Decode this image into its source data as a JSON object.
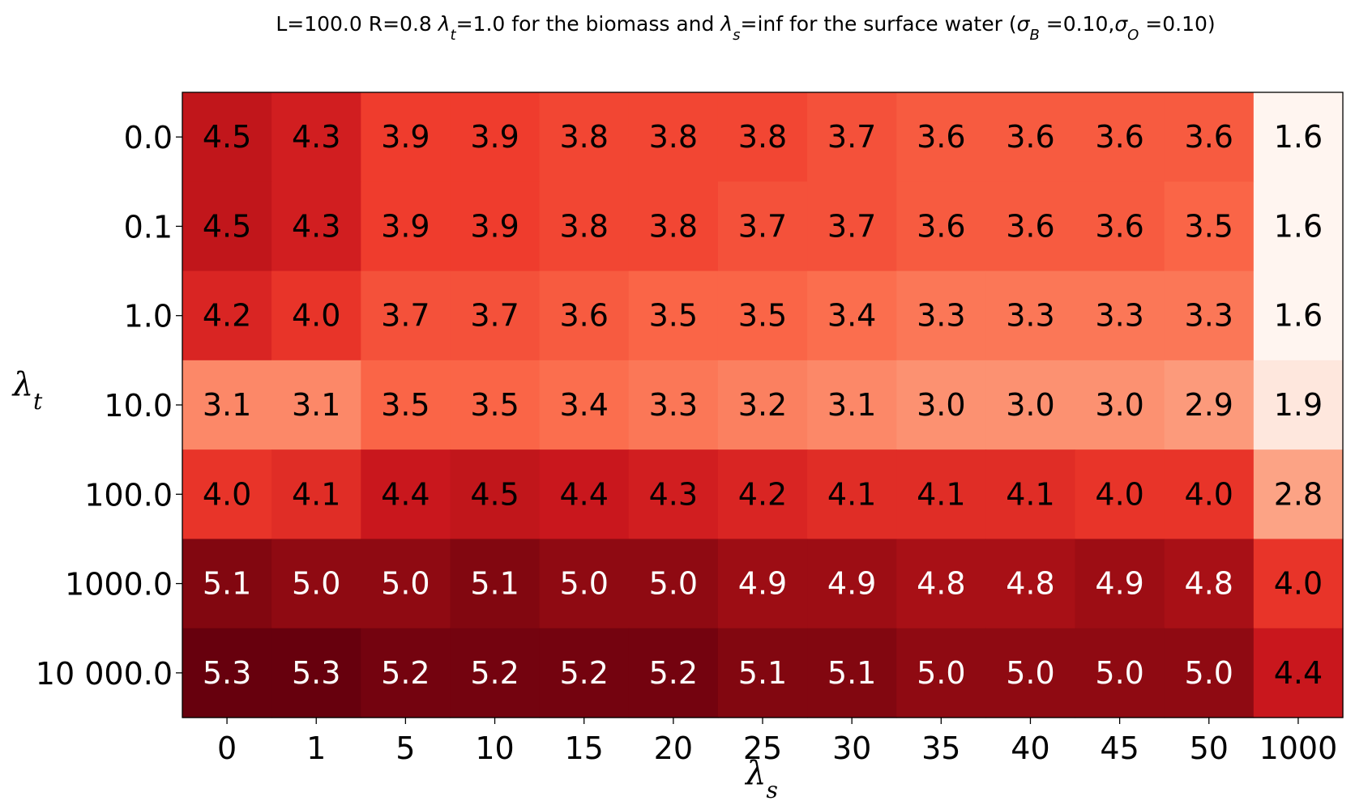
{
  "chart_data": {
    "type": "heatmap",
    "title": "L=100.0 R=0.8 λt=1.0 for the biomass and λs=inf for the surface water (σB =0.10,σO =0.10)",
    "xlabel": "λs",
    "ylabel": "λt",
    "x_categories": [
      "0",
      "1",
      "5",
      "10",
      "15",
      "20",
      "25",
      "30",
      "35",
      "40",
      "45",
      "50",
      "1000"
    ],
    "y_categories": [
      "0.0",
      "0.1",
      "1.0",
      "10.0",
      "100.0",
      "1000.0",
      "10 000.0"
    ],
    "values": [
      [
        4.5,
        4.3,
        3.9,
        3.9,
        3.8,
        3.8,
        3.8,
        3.7,
        3.6,
        3.6,
        3.6,
        3.6,
        1.6
      ],
      [
        4.5,
        4.3,
        3.9,
        3.9,
        3.8,
        3.8,
        3.7,
        3.7,
        3.6,
        3.6,
        3.6,
        3.5,
        1.6
      ],
      [
        4.2,
        4.0,
        3.7,
        3.7,
        3.6,
        3.5,
        3.5,
        3.4,
        3.3,
        3.3,
        3.3,
        3.3,
        1.6
      ],
      [
        3.1,
        3.1,
        3.5,
        3.5,
        3.4,
        3.3,
        3.2,
        3.1,
        3.0,
        3.0,
        3.0,
        2.9,
        1.9
      ],
      [
        4.0,
        4.1,
        4.4,
        4.5,
        4.4,
        4.3,
        4.2,
        4.1,
        4.1,
        4.1,
        4.0,
        4.0,
        2.8
      ],
      [
        5.1,
        5.0,
        5.0,
        5.1,
        5.0,
        5.0,
        4.9,
        4.9,
        4.8,
        4.8,
        4.9,
        4.8,
        4.0
      ],
      [
        5.3,
        5.3,
        5.2,
        5.2,
        5.2,
        5.2,
        5.1,
        5.1,
        5.0,
        5.0,
        5.0,
        5.0,
        4.4
      ]
    ],
    "colormap": "Reds",
    "grid": false
  }
}
